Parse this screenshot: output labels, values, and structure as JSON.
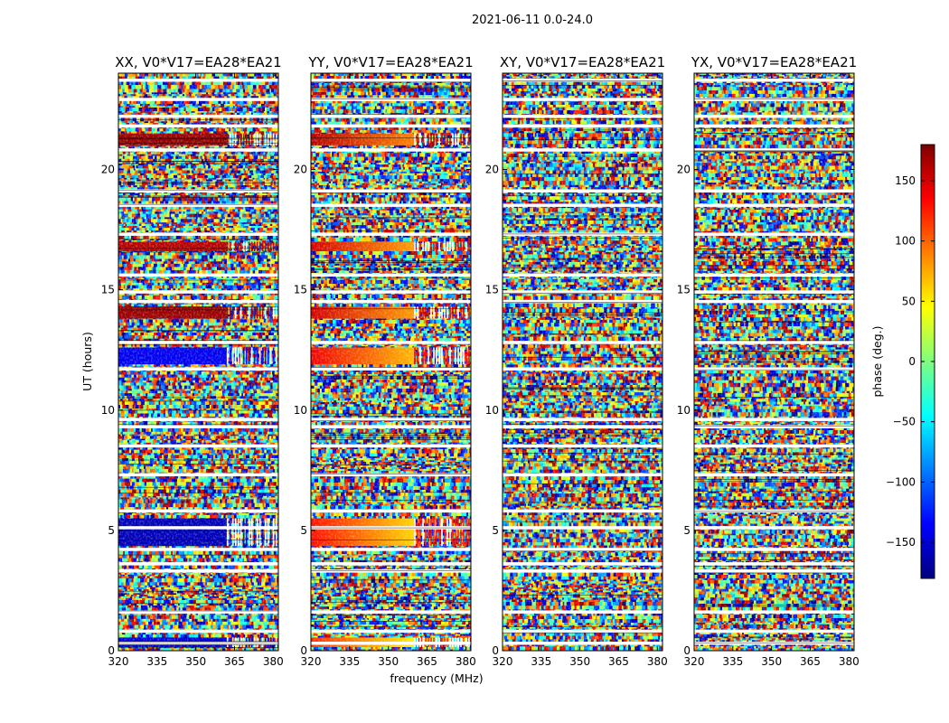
{
  "figure_title": "2021-06-11 0.0-24.0",
  "chart_data": {
    "type": "heatmap",
    "title": "2021-06-11 0.0-24.0",
    "xlabel": "frequency (MHz)",
    "ylabel": "UT (hours)",
    "xlim": [
      320,
      382
    ],
    "ylim": [
      0,
      24
    ],
    "xticks": [
      320,
      335,
      350,
      365,
      380
    ],
    "yticks": [
      0,
      5,
      10,
      15,
      20
    ],
    "colorbar": {
      "label": "phase (deg.)",
      "range": [
        -180,
        180
      ],
      "ticks": [
        -150,
        -100,
        -50,
        0,
        50,
        100,
        150
      ],
      "colormap": "jet",
      "colors": [
        "#00007f",
        "#0000ff",
        "#007fff",
        "#00ffff",
        "#7fff7f",
        "#ffff00",
        "#ff7f00",
        "#ff0000",
        "#7f0000"
      ]
    },
    "panels": [
      {
        "name": "XX",
        "title": "XX, V0*V17=EA28*EA21"
      },
      {
        "name": "YY",
        "title": "YY, V0*V17=EA28*EA21"
      },
      {
        "name": "XY",
        "title": "XY, V0*V17=EA28*EA21"
      },
      {
        "name": "YX",
        "title": "YX, V0*V17=EA28*EA21"
      }
    ],
    "coherent_phase_bands_utc": [
      {
        "start": 0.15,
        "end": 0.55,
        "xx_phase": -150,
        "yy_phase": 120
      },
      {
        "start": 4.35,
        "end": 5.5,
        "xx_phase": -160,
        "yy_phase": 130
      },
      {
        "start": 11.9,
        "end": 12.6,
        "xx_phase": -140,
        "yy_phase": 140
      },
      {
        "start": 13.8,
        "end": 14.3,
        "xx_phase": 170,
        "yy_phase": 150
      },
      {
        "start": 16.6,
        "end": 17.0,
        "xx_phase": 160,
        "yy_phase": 150
      },
      {
        "start": 21.0,
        "end": 21.5,
        "xx_phase": 170,
        "yy_phase": 160
      }
    ],
    "flagged_gaps_utc": [
      0.3,
      0.8,
      1.6,
      3.3,
      3.6,
      4.2,
      5.1,
      5.8,
      7.3,
      8.5,
      9.3,
      9.6,
      11.7,
      12.8,
      14.5,
      14.9,
      15.6,
      17.3,
      18.5,
      19.1,
      20.8,
      21.8,
      22.2,
      22.9,
      23.7
    ]
  }
}
